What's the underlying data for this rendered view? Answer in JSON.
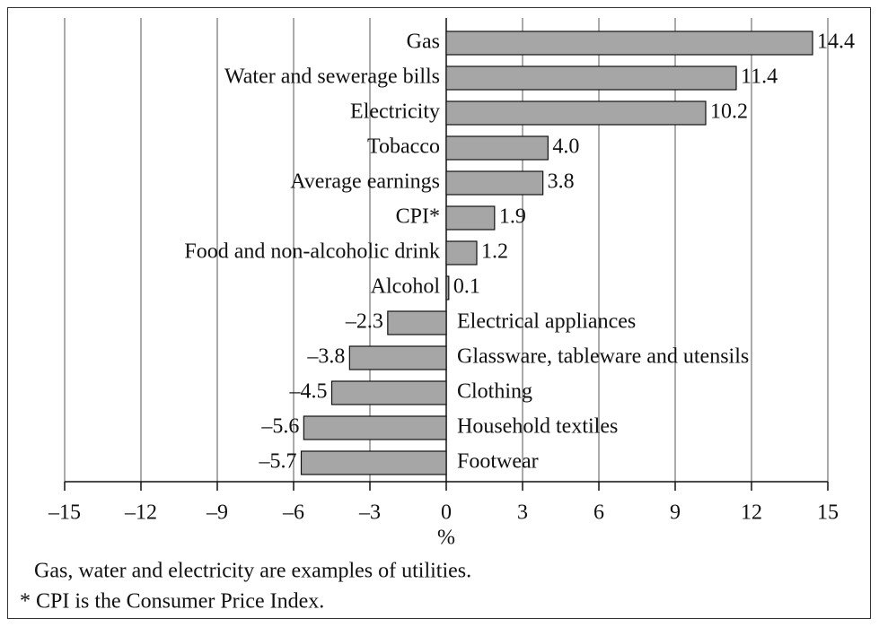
{
  "chart_data": {
    "type": "bar",
    "orientation": "horizontal",
    "categories": [
      "Gas",
      "Water and sewerage bills",
      "Electricity",
      "Tobacco",
      "Average earnings",
      "CPI*",
      "Food and non-alcoholic drink",
      "Alcohol",
      "Electrical appliances",
      "Glassware, tableware and utensils",
      "Clothing",
      "Household textiles",
      "Footwear"
    ],
    "values": [
      14.4,
      11.4,
      10.2,
      4.0,
      3.8,
      1.9,
      1.2,
      0.1,
      -2.3,
      -3.8,
      -4.5,
      -5.6,
      -5.7
    ],
    "value_labels": [
      "14.4",
      "11.4",
      "10.2",
      "4.0",
      "3.8",
      "1.9",
      "1.2",
      "0.1",
      "–2.3",
      "–3.8",
      "–4.5",
      "–5.6",
      "–5.7"
    ],
    "color": "#a6a6a6",
    "xlim": [
      -15,
      15
    ],
    "xticks": [
      {
        "value": -15,
        "label": "–15"
      },
      {
        "value": -12,
        "label": "–12"
      },
      {
        "value": -9,
        "label": "–9"
      },
      {
        "value": -6,
        "label": "–6"
      },
      {
        "value": -3,
        "label": "–3"
      },
      0,
      3,
      6,
      9,
      12,
      15
    ],
    "x_label": "%",
    "grid": true,
    "annotations": [
      "Gas, water and electricity are examples of utilities.",
      "* CPI is the Consumer Price Index."
    ]
  }
}
